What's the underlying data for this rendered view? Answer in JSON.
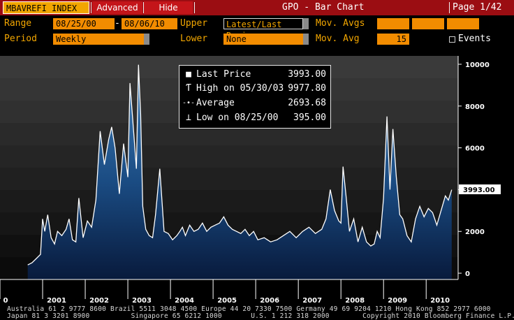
{
  "header": {
    "security": "MBAVREFI INDEX",
    "advanced_label": "Advanced",
    "hide_label": "Hide",
    "window_title": "GPO - Bar Chart",
    "page": "Page 1/42"
  },
  "controls": {
    "range_label": "Range",
    "range_start": "08/25/00",
    "range_dash": "-",
    "range_end": "08/06/10",
    "upper_label": "Upper",
    "upper_value": "Latest/Last Revi",
    "mov_avgs_label": "Mov. Avgs",
    "period_label": "Period",
    "period_value": "Weekly",
    "lower_label": "Lower",
    "lower_value": "None",
    "mov_avg_label": "Mov. Avg",
    "mov_avg_value": "15",
    "events_label": "Events"
  },
  "legend": [
    {
      "icon": "square-icon",
      "glyph": "■",
      "name": "Last Price",
      "value": "3993.00"
    },
    {
      "icon": "high-marker-icon",
      "glyph": "Ƭ",
      "name": "High on 05/30/03",
      "value": "9977.80"
    },
    {
      "icon": "average-marker-icon",
      "glyph": "-•-",
      "name": "Average",
      "value": "2693.68"
    },
    {
      "icon": "low-marker-icon",
      "glyph": "⊥",
      "name": "Low on 08/25/00",
      "value": "395.00"
    }
  ],
  "chart_data": {
    "type": "area",
    "ylim": [
      -300,
      10400
    ],
    "y_ticks": [
      0,
      2000,
      4000,
      6000,
      8000,
      10000
    ],
    "x_ticks": [
      {
        "label": "0",
        "year": 2000.0
      },
      {
        "label": "2001",
        "year": 2001.0
      },
      {
        "label": "2002",
        "year": 2002.0
      },
      {
        "label": "2003",
        "year": 2003.0
      },
      {
        "label": "2004",
        "year": 2004.0
      },
      {
        "label": "2005",
        "year": 2005.0
      },
      {
        "label": "2006",
        "year": 2006.0
      },
      {
        "label": "2007",
        "year": 2007.0
      },
      {
        "label": "2008",
        "year": 2008.0
      },
      {
        "label": "2009",
        "year": 2009.0
      },
      {
        "label": "2010",
        "year": 2010.0
      }
    ],
    "last_price_label": "3993.00",
    "series": [
      {
        "x": [
          2000.65,
          2000.75,
          2000.85,
          2000.95,
          2001.0,
          2001.05,
          2001.12,
          2001.2,
          2001.28,
          2001.35,
          2001.45,
          2001.55,
          2001.62,
          2001.7,
          2001.78,
          2001.85,
          2001.95,
          2002.05,
          2002.15,
          2002.25,
          2002.35,
          2002.45,
          2002.55,
          2002.62,
          2002.7,
          2002.8,
          2002.9,
          2003.0,
          2003.05,
          2003.12,
          2003.2,
          2003.25,
          2003.3,
          2003.35,
          2003.42,
          2003.5,
          2003.58,
          2003.65,
          2003.75,
          2003.85,
          2003.95,
          2004.05,
          2004.15,
          2004.22,
          2004.28,
          2004.35,
          2004.45,
          2004.55,
          2004.65,
          2004.75,
          2004.85,
          2004.95,
          2005.05,
          2005.15,
          2005.25,
          2005.35,
          2005.45,
          2005.55,
          2005.65,
          2005.75,
          2005.85,
          2005.95,
          2006.05,
          2006.2,
          2006.35,
          2006.5,
          2006.65,
          2006.8,
          2006.95,
          2007.1,
          2007.25,
          2007.4,
          2007.55,
          2007.65,
          2007.75,
          2007.85,
          2007.95,
          2008.0,
          2008.05,
          2008.12,
          2008.2,
          2008.3,
          2008.4,
          2008.5,
          2008.6,
          2008.7,
          2008.78,
          2008.85,
          2008.92,
          2009.0,
          2009.08,
          2009.15,
          2009.22,
          2009.3,
          2009.38,
          2009.45,
          2009.55,
          2009.65,
          2009.75,
          2009.85,
          2009.95,
          2010.05,
          2010.15,
          2010.25,
          2010.35,
          2010.45,
          2010.52,
          2010.6
        ],
        "values": [
          395,
          500,
          700,
          900,
          2600,
          2000,
          2800,
          1700,
          1400,
          2000,
          1800,
          2100,
          2600,
          1600,
          1500,
          3600,
          1700,
          2500,
          2200,
          3500,
          6800,
          5200,
          6400,
          7000,
          6000,
          3800,
          6200,
          4600,
          9100,
          7200,
          5000,
          9977.8,
          7600,
          3200,
          2100,
          1800,
          1700,
          2800,
          5000,
          2000,
          1900,
          1600,
          1800,
          2000,
          2200,
          1800,
          2300,
          2000,
          2100,
          2400,
          2000,
          2200,
          2300,
          2400,
          2700,
          2300,
          2100,
          2000,
          1900,
          2100,
          1800,
          2000,
          1600,
          1700,
          1500,
          1600,
          1800,
          2000,
          1700,
          2000,
          2200,
          1900,
          2100,
          2600,
          4000,
          3000,
          2500,
          2400,
          5100,
          3700,
          2000,
          2600,
          1500,
          2200,
          1500,
          1300,
          1400,
          2000,
          1700,
          3600,
          7500,
          4000,
          6900,
          4600,
          2800,
          2600,
          1800,
          1500,
          2600,
          3200,
          2700,
          3100,
          2900,
          2300,
          3000,
          3700,
          3500,
          3993
        ]
      }
    ]
  },
  "footer": {
    "line1": "Australia 61 2 9777 8600 Brazil 5511 3048 4500 Europe 44 20 7330 7500 Germany 49 69 9204 1210 Hong Kong 852 2977 6000",
    "line2": "Japan 81 3 3201 8900          Singapore 65 6212 1000       U.S. 1 212 318 2000        Copyright 2010 Bloomberg Finance L.P."
  }
}
